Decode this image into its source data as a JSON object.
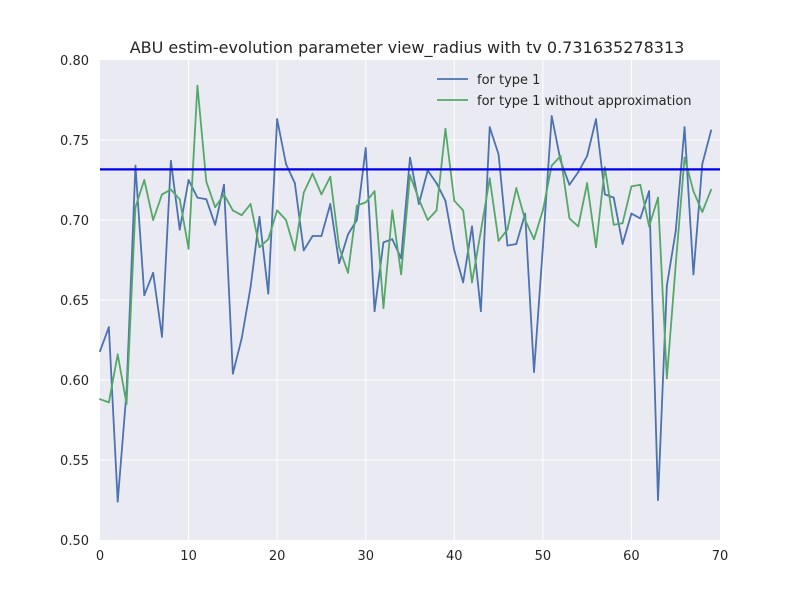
{
  "chart_data": {
    "type": "line",
    "title": "ABU estim-evolution parameter view_radius with tv 0.731635278313",
    "xlabel": "",
    "ylabel": "",
    "xlim": [
      0,
      70
    ],
    "ylim": [
      0.5,
      0.8
    ],
    "xticks": [
      0,
      10,
      20,
      30,
      40,
      50,
      60,
      70
    ],
    "yticks": [
      0.5,
      0.55,
      0.6,
      0.65,
      0.7,
      0.75,
      0.8
    ],
    "xtick_labels": [
      "0",
      "10",
      "20",
      "30",
      "40",
      "50",
      "60",
      "70"
    ],
    "ytick_labels": [
      "0.50",
      "0.55",
      "0.60",
      "0.65",
      "0.70",
      "0.75",
      "0.80"
    ],
    "grid": true,
    "legend_position": "top-right",
    "reference_line": {
      "y": 0.731635278313,
      "color": "#0000ee"
    },
    "series": [
      {
        "name": "for type 1",
        "color": "#4c72b0",
        "x": [
          0,
          1,
          2,
          3,
          4,
          5,
          6,
          7,
          8,
          9,
          10,
          11,
          12,
          13,
          14,
          15,
          16,
          17,
          18,
          19,
          20,
          21,
          22,
          23,
          24,
          25,
          26,
          27,
          28,
          29,
          30,
          31,
          32,
          33,
          34,
          35,
          36,
          37,
          38,
          39,
          40,
          41,
          42,
          43,
          44,
          45,
          46,
          47,
          48,
          49,
          50,
          51,
          52,
          53,
          54,
          55,
          56,
          57,
          58,
          59,
          60,
          61,
          62,
          63,
          64,
          65,
          66,
          67,
          68,
          69
        ],
        "values": [
          0.618,
          0.633,
          0.524,
          0.593,
          0.734,
          0.653,
          0.667,
          0.627,
          0.737,
          0.694,
          0.725,
          0.714,
          0.713,
          0.697,
          0.722,
          0.604,
          0.626,
          0.658,
          0.702,
          0.654,
          0.763,
          0.735,
          0.723,
          0.681,
          0.69,
          0.69,
          0.71,
          0.673,
          0.691,
          0.7,
          0.745,
          0.643,
          0.686,
          0.688,
          0.676,
          0.739,
          0.71,
          0.731,
          0.723,
          0.712,
          0.681,
          0.661,
          0.696,
          0.643,
          0.758,
          0.741,
          0.684,
          0.685,
          0.704,
          0.605,
          0.683,
          0.765,
          0.737,
          0.722,
          0.73,
          0.74,
          0.763,
          0.716,
          0.714,
          0.685,
          0.704,
          0.701,
          0.718,
          0.525,
          0.659,
          0.693,
          0.758,
          0.666,
          0.735,
          0.756
        ]
      },
      {
        "name": "for type 1 without approximation",
        "color": "#55a868",
        "x": [
          0,
          1,
          2,
          3,
          4,
          5,
          6,
          7,
          8,
          9,
          10,
          11,
          12,
          13,
          14,
          15,
          16,
          17,
          18,
          19,
          20,
          21,
          22,
          23,
          24,
          25,
          26,
          27,
          28,
          29,
          30,
          31,
          32,
          33,
          34,
          35,
          36,
          37,
          38,
          39,
          40,
          41,
          42,
          43,
          44,
          45,
          46,
          47,
          48,
          49,
          50,
          51,
          52,
          53,
          54,
          55,
          56,
          57,
          58,
          59,
          60,
          61,
          62,
          63,
          64,
          65,
          66,
          67,
          68,
          69
        ],
        "values": [
          0.588,
          0.586,
          0.616,
          0.585,
          0.708,
          0.725,
          0.7,
          0.716,
          0.719,
          0.713,
          0.682,
          0.784,
          0.724,
          0.708,
          0.716,
          0.706,
          0.703,
          0.71,
          0.683,
          0.688,
          0.706,
          0.7,
          0.681,
          0.717,
          0.729,
          0.716,
          0.727,
          0.683,
          0.667,
          0.709,
          0.711,
          0.718,
          0.645,
          0.706,
          0.666,
          0.728,
          0.713,
          0.7,
          0.706,
          0.757,
          0.712,
          0.706,
          0.661,
          0.693,
          0.726,
          0.687,
          0.694,
          0.72,
          0.7,
          0.688,
          0.706,
          0.734,
          0.74,
          0.701,
          0.696,
          0.723,
          0.683,
          0.733,
          0.697,
          0.698,
          0.721,
          0.722,
          0.696,
          0.714,
          0.601,
          0.672,
          0.739,
          0.718,
          0.705,
          0.719
        ]
      }
    ]
  }
}
